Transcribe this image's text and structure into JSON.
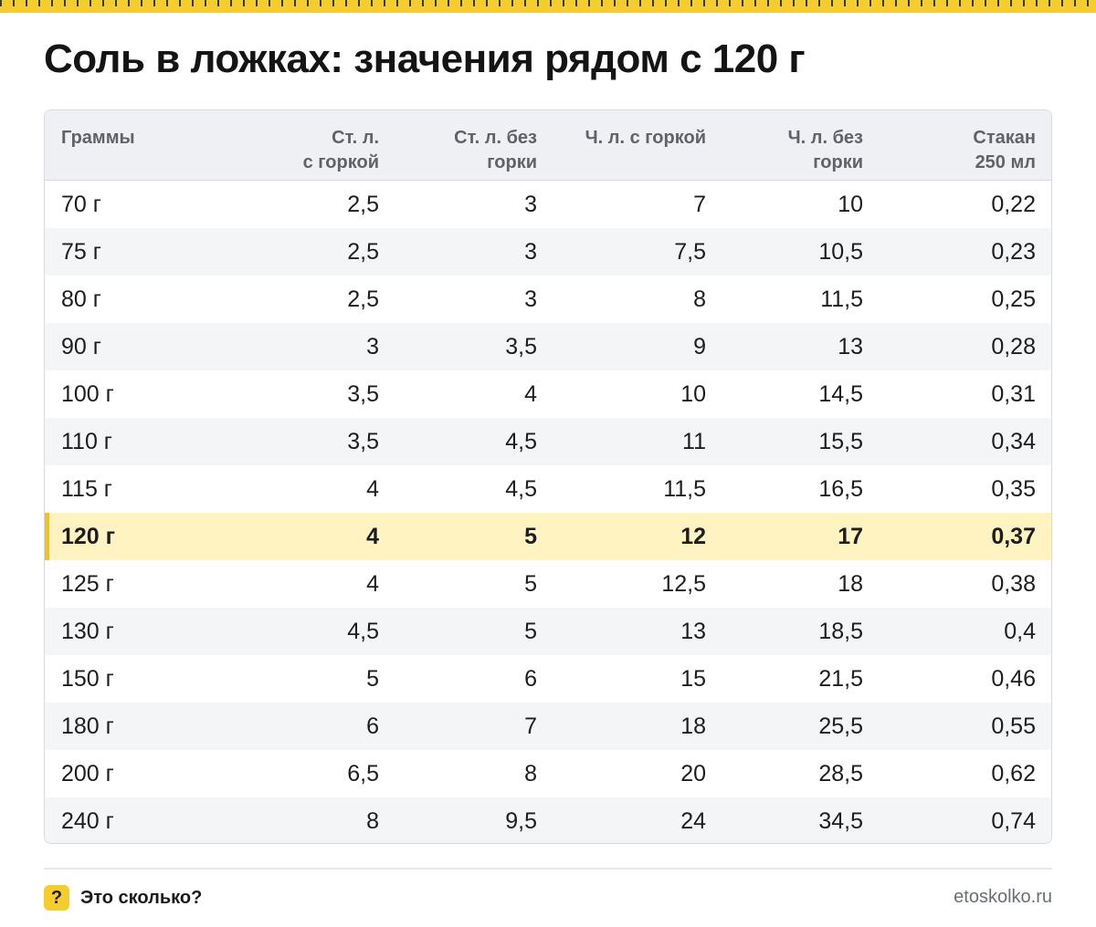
{
  "title": "Соль в ложках: значения рядом с 120 г",
  "colors": {
    "accent": "#f6cd2e",
    "highlight_row": "#fff3c2",
    "header_bg": "#eef0f3"
  },
  "table": {
    "headers": [
      "Граммы",
      "Ст. л.\nс горкой",
      "Ст. л. без\nгорки",
      "Ч. л. с горкой",
      "Ч. л. без\nгорки",
      "Стакан\n250 мл"
    ],
    "highlight_index": 7,
    "rows": [
      [
        "70 г",
        "2,5",
        "3",
        "7",
        "10",
        "0,22"
      ],
      [
        "75 г",
        "2,5",
        "3",
        "7,5",
        "10,5",
        "0,23"
      ],
      [
        "80 г",
        "2,5",
        "3",
        "8",
        "11,5",
        "0,25"
      ],
      [
        "90 г",
        "3",
        "3,5",
        "9",
        "13",
        "0,28"
      ],
      [
        "100 г",
        "3,5",
        "4",
        "10",
        "14,5",
        "0,31"
      ],
      [
        "110 г",
        "3,5",
        "4,5",
        "11",
        "15,5",
        "0,34"
      ],
      [
        "115 г",
        "4",
        "4,5",
        "11,5",
        "16,5",
        "0,35"
      ],
      [
        "120 г",
        "4",
        "5",
        "12",
        "17",
        "0,37"
      ],
      [
        "125 г",
        "4",
        "5",
        "12,5",
        "18",
        "0,38"
      ],
      [
        "130 г",
        "4,5",
        "5",
        "13",
        "18,5",
        "0,4"
      ],
      [
        "150 г",
        "5",
        "6",
        "15",
        "21,5",
        "0,46"
      ],
      [
        "180 г",
        "6",
        "7",
        "18",
        "25,5",
        "0,55"
      ],
      [
        "200 г",
        "6,5",
        "8",
        "20",
        "28,5",
        "0,62"
      ],
      [
        "240 г",
        "8",
        "9,5",
        "24",
        "34,5",
        "0,74"
      ]
    ]
  },
  "footer": {
    "icon_glyph": "?",
    "brand": "Это сколько?",
    "site": "etoskolko.ru"
  }
}
